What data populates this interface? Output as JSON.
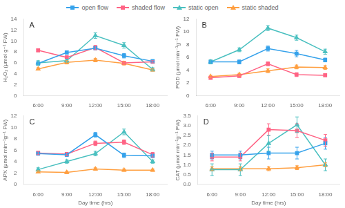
{
  "chart_data": [
    {
      "type": "line",
      "title": "A",
      "y_label": "H₂O₂ (μmol g⁻¹ FW)",
      "categories": [
        "6:00",
        "9:00",
        "12:00",
        "15:00",
        "18:00"
      ],
      "ylim": [
        0,
        14
      ],
      "yticks": [
        0,
        2,
        4,
        6,
        8,
        10,
        12,
        14
      ],
      "grid": false,
      "legend": "top",
      "series": [
        {
          "name": "open flow",
          "color": "#36a2eb",
          "marker": "square",
          "values": [
            5.9,
            7.9,
            8.7,
            7.3,
            6.3
          ],
          "errors": [
            0.3,
            0.3,
            0.3,
            0.4,
            0.3
          ]
        },
        {
          "name": "shaded flow",
          "color": "#ff6384",
          "marker": "square",
          "values": [
            8.3,
            7.0,
            8.8,
            6.0,
            6.2
          ],
          "errors": [
            0.2,
            0.3,
            0.4,
            0.3,
            0.2
          ]
        },
        {
          "name": "static open",
          "color": "#4bc0c0",
          "marker": "triangle",
          "values": [
            6.0,
            6.4,
            11.0,
            9.2,
            4.8
          ],
          "errors": [
            0.4,
            0.3,
            0.5,
            0.5,
            0.3
          ]
        },
        {
          "name": "static shaded",
          "color": "#ff9f40",
          "marker": "triangle",
          "values": [
            4.9,
            6.1,
            6.5,
            5.9,
            4.7
          ],
          "errors": [
            0.2,
            0.3,
            0.3,
            0.3,
            0.2
          ]
        }
      ]
    },
    {
      "type": "line",
      "title": "B",
      "y_label": "POD (μmol min⁻¹g⁻¹ FW)",
      "categories": [
        "6:00",
        "9:00",
        "12:00",
        "15:00",
        "18:00"
      ],
      "ylim": [
        0,
        12
      ],
      "yticks": [
        0,
        2,
        4,
        6,
        8,
        10,
        12
      ],
      "grid": false,
      "series": [
        {
          "name": "open flow",
          "color": "#36a2eb",
          "marker": "square",
          "values": [
            5.3,
            5.3,
            7.4,
            6.6,
            5.6
          ],
          "errors": [
            0.3,
            0.3,
            0.4,
            0.5,
            0.3
          ]
        },
        {
          "name": "shaded flow",
          "color": "#ff6384",
          "marker": "square",
          "values": [
            2.8,
            3.1,
            5.0,
            3.3,
            3.2
          ],
          "errors": [
            0.2,
            0.2,
            0.3,
            0.3,
            0.2
          ]
        },
        {
          "name": "static open",
          "color": "#4bc0c0",
          "marker": "triangle",
          "values": [
            5.3,
            7.2,
            10.6,
            9.1,
            6.9
          ],
          "errors": [
            0.3,
            0.3,
            0.4,
            0.4,
            0.4
          ]
        },
        {
          "name": "static shaded",
          "color": "#ff9f40",
          "marker": "triangle",
          "values": [
            3.0,
            3.3,
            3.9,
            4.5,
            4.4
          ],
          "errors": [
            0.2,
            0.2,
            0.3,
            0.3,
            0.3
          ]
        }
      ]
    },
    {
      "type": "line",
      "title": "C",
      "y_label": "APX (μmol min⁻¹g⁻¹ FW)",
      "x_label": "Day time (hrs)",
      "categories": [
        "6:00",
        "9:00",
        "12:00",
        "15:00",
        "18:00"
      ],
      "ylim": [
        0,
        12
      ],
      "yticks": [
        0,
        2,
        4,
        6,
        8,
        10,
        12
      ],
      "grid": false,
      "series": [
        {
          "name": "open flow",
          "color": "#36a2eb",
          "marker": "square",
          "values": [
            5.4,
            5.2,
            8.7,
            5.1,
            5.0
          ],
          "errors": [
            0.3,
            0.3,
            0.4,
            0.4,
            0.3
          ]
        },
        {
          "name": "shaded flow",
          "color": "#ff6384",
          "marker": "square",
          "values": [
            5.5,
            5.3,
            7.2,
            7.4,
            5.2
          ],
          "errors": [
            0.3,
            0.3,
            0.4,
            0.4,
            0.4
          ]
        },
        {
          "name": "static open",
          "color": "#4bc0c0",
          "marker": "triangle",
          "values": [
            2.6,
            4.0,
            5.4,
            9.2,
            4.0
          ],
          "errors": [
            0.3,
            0.3,
            0.4,
            0.5,
            0.3
          ]
        },
        {
          "name": "static shaded",
          "color": "#ff9f40",
          "marker": "triangle",
          "values": [
            2.2,
            2.1,
            2.7,
            2.5,
            2.5
          ],
          "errors": [
            0.2,
            0.2,
            0.2,
            0.2,
            0.2
          ]
        }
      ]
    },
    {
      "type": "line",
      "title": "D",
      "y_label": "CAT (μmol min⁻¹g⁻¹ FW)",
      "x_label": "Day time (hrs)",
      "categories": [
        "6:00",
        "9:00",
        "12:00",
        "15:00",
        "18:00"
      ],
      "ylim": [
        0,
        3.5
      ],
      "yticks": [
        {
          "value": 0,
          "label": "0.0"
        },
        0.5,
        {
          "value": 1,
          "label": "1.0"
        },
        1.5,
        {
          "value": 2,
          "label": "2.0"
        },
        2.5,
        {
          "value": 3,
          "label": "3.0"
        },
        3.5
      ],
      "grid": false,
      "series": [
        {
          "name": "open flow",
          "color": "#36a2eb",
          "marker": "square",
          "values": [
            1.5,
            1.5,
            1.6,
            1.6,
            2.1
          ],
          "errors": [
            0.2,
            0.2,
            0.3,
            0.3,
            0.3
          ]
        },
        {
          "name": "shaded flow",
          "color": "#ff6384",
          "marker": "square",
          "values": [
            1.4,
            1.4,
            2.8,
            2.75,
            2.25
          ],
          "errors": [
            0.2,
            0.2,
            0.3,
            0.35,
            0.3
          ]
        },
        {
          "name": "static open",
          "color": "#4bc0c0",
          "marker": "triangle",
          "values": [
            0.75,
            0.75,
            2.1,
            3.05,
            1.0
          ],
          "errors": [
            0.3,
            0.3,
            0.4,
            0.4,
            0.3
          ]
        },
        {
          "name": "static shaded",
          "color": "#ff9f40",
          "marker": "triangle",
          "values": [
            0.8,
            0.8,
            0.8,
            0.85,
            1.0
          ],
          "errors": [
            0.1,
            0.1,
            0.1,
            0.1,
            0.1
          ]
        }
      ]
    }
  ]
}
